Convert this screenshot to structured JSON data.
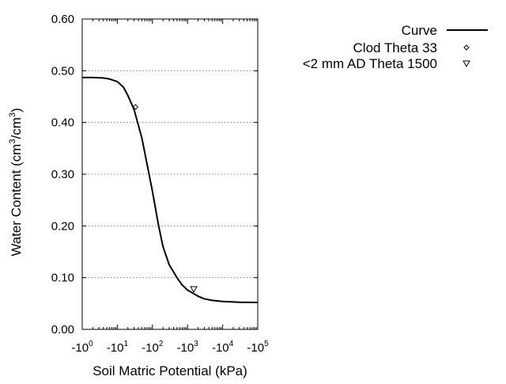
{
  "chart_data": {
    "type": "line",
    "xlabel": "Soil Matric Potential (kPa)",
    "ylabel": {
      "main": "Water Content (cm",
      "sup1": "3",
      "mid": "/cm",
      "sup2": "3",
      "end": ")"
    },
    "x_scale": "log",
    "xlim": [
      1,
      100000
    ],
    "ylim": [
      0.0,
      0.6
    ],
    "grid": "horizontal-dotted",
    "legend_position": "top-right",
    "x_ticks": [
      {
        "value": 1,
        "base": "-10",
        "exp": "0"
      },
      {
        "value": 10,
        "base": "-10",
        "exp": "1"
      },
      {
        "value": 100,
        "base": "-10",
        "exp": "2"
      },
      {
        "value": 1000,
        "base": "-10",
        "exp": "3"
      },
      {
        "value": 10000,
        "base": "-10",
        "exp": "4"
      },
      {
        "value": 100000,
        "base": "-10",
        "exp": "5"
      }
    ],
    "y_ticks": [
      {
        "value": 0.0,
        "label": "0.00"
      },
      {
        "value": 0.1,
        "label": "0.10"
      },
      {
        "value": 0.2,
        "label": "0.20"
      },
      {
        "value": 0.3,
        "label": "0.30"
      },
      {
        "value": 0.4,
        "label": "0.40"
      },
      {
        "value": 0.5,
        "label": "0.50"
      },
      {
        "value": 0.6,
        "label": "0.60"
      }
    ],
    "series": [
      {
        "name": "Curve",
        "kind": "line",
        "color": "#000000",
        "points": [
          [
            1,
            0.487
          ],
          [
            2,
            0.487
          ],
          [
            4,
            0.486
          ],
          [
            6,
            0.484
          ],
          [
            10,
            0.479
          ],
          [
            15,
            0.468
          ],
          [
            20,
            0.452
          ],
          [
            30,
            0.425
          ],
          [
            50,
            0.37
          ],
          [
            70,
            0.32
          ],
          [
            100,
            0.267
          ],
          [
            150,
            0.2
          ],
          [
            200,
            0.16
          ],
          [
            300,
            0.125
          ],
          [
            500,
            0.1
          ],
          [
            700,
            0.086
          ],
          [
            1000,
            0.076
          ],
          [
            2000,
            0.064
          ],
          [
            3000,
            0.059
          ],
          [
            5000,
            0.056
          ],
          [
            10000,
            0.054
          ],
          [
            30000,
            0.0525
          ],
          [
            100000,
            0.052
          ]
        ]
      },
      {
        "name": "Clod Theta 33",
        "kind": "marker",
        "marker": "diamond",
        "points": [
          [
            33,
            0.43
          ]
        ]
      },
      {
        "name": "<2 mm AD Theta 1500",
        "kind": "marker",
        "marker": "triangle-down",
        "points": [
          [
            1500,
            0.078
          ]
        ]
      }
    ]
  }
}
